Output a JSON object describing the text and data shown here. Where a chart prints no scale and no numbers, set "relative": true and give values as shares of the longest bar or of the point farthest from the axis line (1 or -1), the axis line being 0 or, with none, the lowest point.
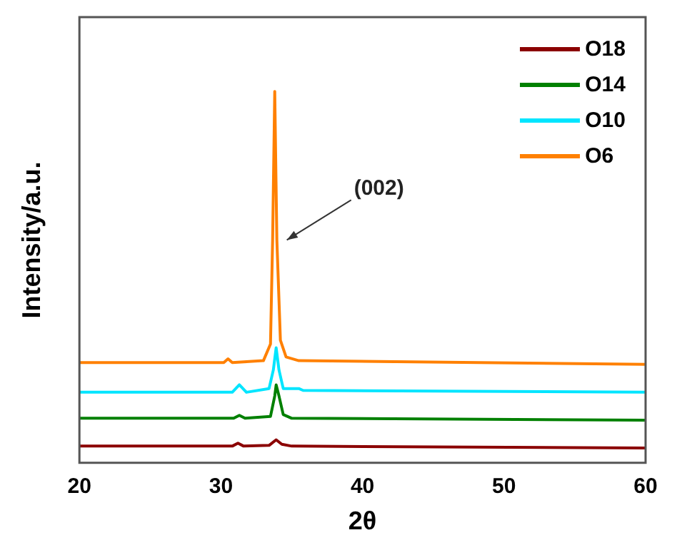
{
  "chart_data": {
    "type": "line",
    "relative": true,
    "xlabel": "2θ",
    "ylabel": "Intensity/a.u.",
    "xlim": [
      20,
      60
    ],
    "xticks": [
      20,
      30,
      40,
      50,
      60
    ],
    "grid": false,
    "legend": "top right",
    "marker": "none",
    "annotations": [
      {
        "text": "(002)",
        "x": 33.95,
        "y": 0.6
      }
    ],
    "series": [
      {
        "name": "O18",
        "color": "#8b0000",
        "x": [
          20,
          30.8,
          31.2,
          31.6,
          33.4,
          33.9,
          34.3,
          35,
          60
        ],
        "values": [
          0.045,
          0.045,
          0.053,
          0.045,
          0.047,
          0.062,
          0.05,
          0.045,
          0.04
        ]
      },
      {
        "name": "O14",
        "color": "#008000",
        "x": [
          20,
          30.9,
          31.3,
          31.7,
          33.5,
          33.8,
          33.9,
          34.1,
          34.4,
          35,
          60
        ],
        "values": [
          0.12,
          0.12,
          0.128,
          0.12,
          0.125,
          0.18,
          0.21,
          0.18,
          0.13,
          0.12,
          0.115
        ]
      },
      {
        "name": "O10",
        "color": "#00e5ff",
        "x": [
          20,
          30.8,
          31.3,
          31.8,
          33.4,
          33.7,
          33.9,
          34.1,
          34.4,
          35.5,
          35.8,
          60
        ],
        "values": [
          0.19,
          0.19,
          0.21,
          0.19,
          0.2,
          0.25,
          0.31,
          0.25,
          0.2,
          0.2,
          0.195,
          0.19
        ]
      },
      {
        "name": "O6",
        "color": "#ff8000",
        "x": [
          20,
          30.2,
          30.5,
          30.8,
          33,
          33.5,
          33.65,
          33.8,
          33.95,
          34.2,
          34.6,
          35.5,
          60
        ],
        "values": [
          0.27,
          0.27,
          0.28,
          0.27,
          0.275,
          0.32,
          0.6,
          1,
          0.6,
          0.33,
          0.285,
          0.275,
          0.265
        ]
      }
    ]
  }
}
